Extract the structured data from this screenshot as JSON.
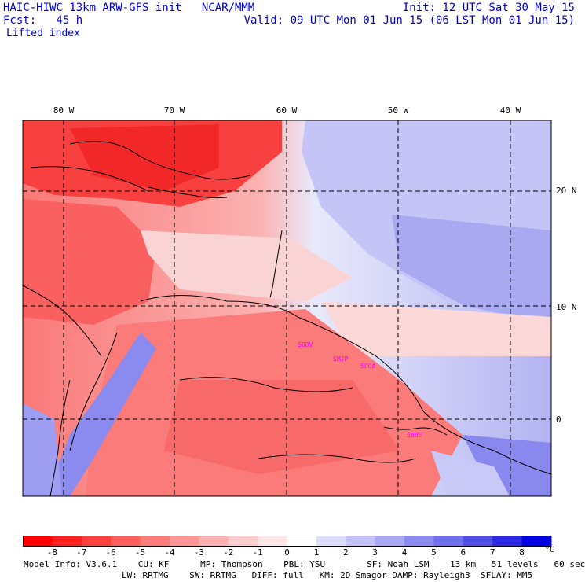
{
  "header": {
    "line1_left": "HAIC-HIWC 13km ARW-GFS init   NCAR/MMM",
    "line1_right": "Init: 12 UTC Sat 30 May 15",
    "line2_left": "Fcst:   45 h",
    "line2_right": "Valid: 09 UTC Mon 01 Jun 15 (06 LST Mon 01 Jun 15)",
    "field": "Lifted index"
  },
  "map": {
    "longitude_labels": [
      "80 W",
      "70 W",
      "60 W",
      "50 W",
      "40 W"
    ],
    "latitude_labels": [
      "20 N",
      "10 N",
      "0"
    ],
    "site_labels": [
      "SBBV",
      "SMJP",
      "SOCA",
      "SBBE"
    ]
  },
  "colorbar": {
    "ticks": [
      "-8",
      "-7",
      "-6",
      "-5",
      "-4",
      "-3",
      "-2",
      "-1",
      "0",
      "1",
      "2",
      "3",
      "4",
      "5",
      "6",
      "7",
      "8"
    ],
    "unit": "°C",
    "colors": [
      "#ff0000",
      "#ff2020",
      "#ff4040",
      "#fe6060",
      "#fd7c7c",
      "#fc9696",
      "#fcb0b0",
      "#fdcccc",
      "#ffe6e6",
      "#ffffff",
      "#dcdcfc",
      "#c2c2f8",
      "#a8a8f4",
      "#8c8cf0",
      "#7070ec",
      "#4f4fe8",
      "#2a2ae4",
      "#0000e0"
    ]
  },
  "footer": {
    "line1": "Model Info: V3.6.1    CU: KF      MP: Thompson    PBL: YSU        SF: Noah LSM    13 km   51 levels   60 sec",
    "line2": "LW: RRTMG    SW: RRTMG   DIFF: full   KM: 2D Smagor DAMP: Rayleigh3  SFLAY: MM5"
  }
}
